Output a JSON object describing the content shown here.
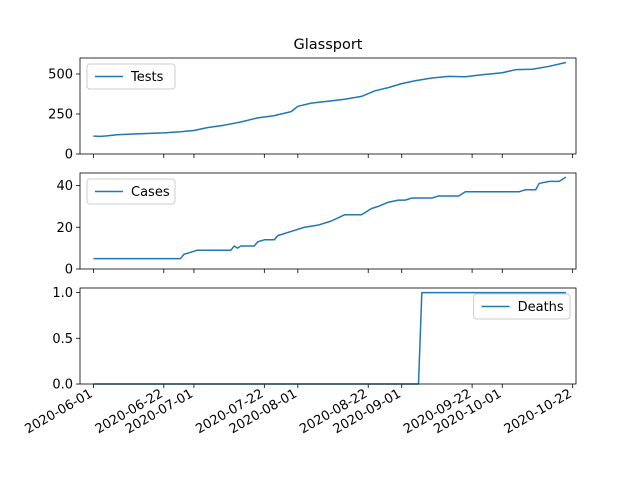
{
  "chart_data": {
    "type": "line",
    "title": "Glassport",
    "x_tick_labels": [
      "2020-06-01",
      "2020-06-22",
      "2020-07-01",
      "2020-07-22",
      "2020-08-01",
      "2020-08-22",
      "2020-09-01",
      "2020-09-22",
      "2020-10-01",
      "2020-10-22"
    ],
    "x_range": [
      "2020-05-28",
      "2020-10-23"
    ],
    "grid": false,
    "line_color": "#1f77b4",
    "panels": [
      {
        "series": {
          "name": "Tests",
          "points": [
            [
              "2020-06-01",
              112
            ],
            [
              "2020-06-03",
              110
            ],
            [
              "2020-06-05",
              113
            ],
            [
              "2020-06-08",
              120
            ],
            [
              "2020-06-12",
              124
            ],
            [
              "2020-06-17",
              128
            ],
            [
              "2020-06-22",
              132
            ],
            [
              "2020-06-27",
              139
            ],
            [
              "2020-07-01",
              147
            ],
            [
              "2020-07-05",
              165
            ],
            [
              "2020-07-10",
              180
            ],
            [
              "2020-07-15",
              200
            ],
            [
              "2020-07-20",
              226
            ],
            [
              "2020-07-25",
              240
            ],
            [
              "2020-07-30",
              265
            ],
            [
              "2020-08-01",
              298
            ],
            [
              "2020-08-05",
              318
            ],
            [
              "2020-08-10",
              330
            ],
            [
              "2020-08-15",
              342
            ],
            [
              "2020-08-20",
              360
            ],
            [
              "2020-08-24",
              395
            ],
            [
              "2020-08-28",
              415
            ],
            [
              "2020-09-01",
              440
            ],
            [
              "2020-09-05",
              458
            ],
            [
              "2020-09-10",
              475
            ],
            [
              "2020-09-15",
              485
            ],
            [
              "2020-09-20",
              483
            ],
            [
              "2020-09-25",
              495
            ],
            [
              "2020-10-01",
              508
            ],
            [
              "2020-10-05",
              527
            ],
            [
              "2020-10-10",
              530
            ],
            [
              "2020-10-15",
              548
            ],
            [
              "2020-10-20",
              572
            ]
          ]
        },
        "ylim": [
          0,
          600
        ],
        "yticks": [
          0,
          250,
          500
        ],
        "legend": "upper left"
      },
      {
        "series": {
          "name": "Cases",
          "points": [
            [
              "2020-06-01",
              5
            ],
            [
              "2020-06-27",
              5
            ],
            [
              "2020-06-28",
              7
            ],
            [
              "2020-06-30",
              8
            ],
            [
              "2020-07-02",
              9
            ],
            [
              "2020-07-12",
              9
            ],
            [
              "2020-07-13",
              11
            ],
            [
              "2020-07-14",
              10
            ],
            [
              "2020-07-15",
              11
            ],
            [
              "2020-07-19",
              11
            ],
            [
              "2020-07-20",
              13
            ],
            [
              "2020-07-22",
              14
            ],
            [
              "2020-07-25",
              14
            ],
            [
              "2020-07-26",
              16
            ],
            [
              "2020-07-30",
              18
            ],
            [
              "2020-08-03",
              20
            ],
            [
              "2020-08-07",
              21
            ],
            [
              "2020-08-11",
              23
            ],
            [
              "2020-08-15",
              26
            ],
            [
              "2020-08-20",
              26
            ],
            [
              "2020-08-23",
              29
            ],
            [
              "2020-08-25",
              30
            ],
            [
              "2020-08-28",
              32
            ],
            [
              "2020-08-31",
              33
            ],
            [
              "2020-09-02",
              33
            ],
            [
              "2020-09-04",
              34
            ],
            [
              "2020-09-10",
              34
            ],
            [
              "2020-09-12",
              35
            ],
            [
              "2020-09-18",
              35
            ],
            [
              "2020-09-20",
              37
            ],
            [
              "2020-10-06",
              37
            ],
            [
              "2020-10-08",
              38
            ],
            [
              "2020-10-11",
              38
            ],
            [
              "2020-10-12",
              41
            ],
            [
              "2020-10-15",
              42
            ],
            [
              "2020-10-18",
              42
            ],
            [
              "2020-10-20",
              44
            ]
          ]
        },
        "ylim": [
          0,
          46
        ],
        "yticks": [
          0,
          20,
          40
        ],
        "legend": "upper left"
      },
      {
        "series": {
          "name": "Deaths",
          "points": [
            [
              "2020-06-01",
              0
            ],
            [
              "2020-09-06",
              0
            ],
            [
              "2020-09-07",
              1
            ],
            [
              "2020-10-20",
              1
            ]
          ]
        },
        "ylim": [
          0,
          1.05
        ],
        "yticks": [
          0.0,
          0.5,
          1.0
        ],
        "ytick_labels": [
          "0.0",
          "0.5",
          "1.0"
        ],
        "legend": "upper right"
      }
    ]
  }
}
